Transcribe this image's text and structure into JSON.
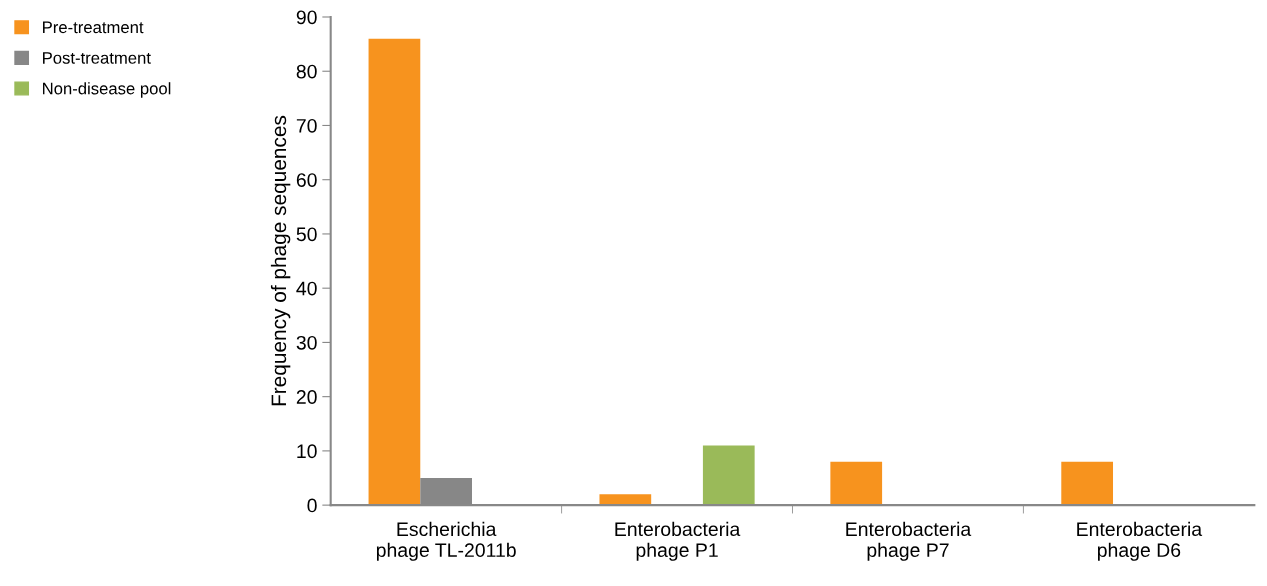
{
  "chart_data": {
    "type": "bar",
    "ylabel": "Frequency of phage sequences",
    "categories": [
      "Escherichia\nphage TL-2011b",
      "Enterobacteria\nphage P1",
      "Enterobacteria\nphage P7",
      "Enterobacteria\nphage D6"
    ],
    "series": [
      {
        "name": "Pre-treatment",
        "color": "#f7931e",
        "values": [
          86,
          2,
          8,
          8
        ]
      },
      {
        "name": "Post-treatment",
        "color": "#878787",
        "values": [
          5,
          0,
          0,
          0
        ]
      },
      {
        "name": "Non-disease pool",
        "color": "#9aba59",
        "values": [
          0,
          11,
          0,
          0
        ]
      }
    ],
    "ylim": [
      0,
      90
    ],
    "yticks": [
      0,
      10,
      20,
      30,
      40,
      50,
      60,
      70,
      80,
      90
    ],
    "grid": false,
    "legend": "top left"
  }
}
